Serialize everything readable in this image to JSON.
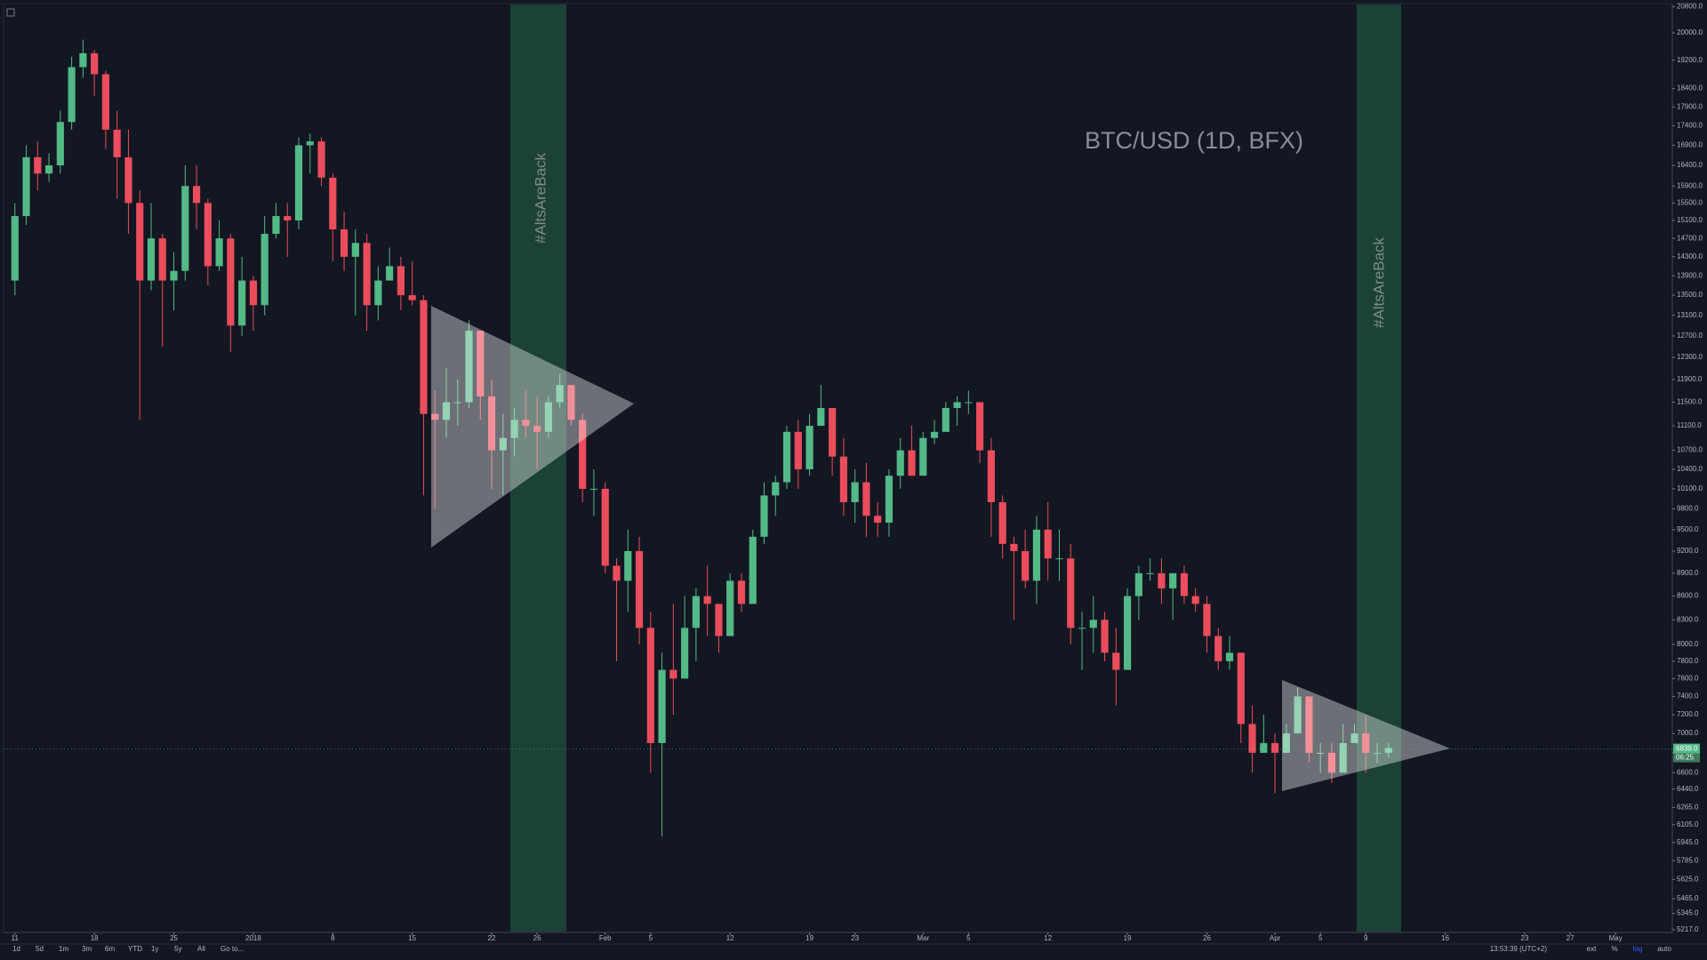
{
  "chart_data": {
    "type": "candlestick",
    "annotations": [
      "BTC/USD (1D, BFX)",
      "#AltsAreBack",
      "#AltsAreBack"
    ],
    "up_color": "#53b987",
    "down_color": "#eb4d5c",
    "log_scale": true,
    "grid": false,
    "x": [
      "2017-12-11",
      "2017-12-12",
      "2017-12-13",
      "2017-12-14",
      "2017-12-15",
      "2017-12-16",
      "2017-12-17",
      "2017-12-18",
      "2017-12-19",
      "2017-12-20",
      "2017-12-21",
      "2017-12-22",
      "2017-12-23",
      "2017-12-24",
      "2017-12-25",
      "2017-12-26",
      "2017-12-27",
      "2017-12-28",
      "2017-12-29",
      "2017-12-30",
      "2017-12-31",
      "2018-01-01",
      "2018-01-02",
      "2018-01-03",
      "2018-01-04",
      "2018-01-05",
      "2018-01-06",
      "2018-01-07",
      "2018-01-08",
      "2018-01-09",
      "2018-01-10",
      "2018-01-11",
      "2018-01-12",
      "2018-01-13",
      "2018-01-14",
      "2018-01-15",
      "2018-01-16",
      "2018-01-17",
      "2018-01-18",
      "2018-01-19",
      "2018-01-20",
      "2018-01-21",
      "2018-01-22",
      "2018-01-23",
      "2018-01-24",
      "2018-01-25",
      "2018-01-26",
      "2018-01-27",
      "2018-01-28",
      "2018-01-29",
      "2018-01-30",
      "2018-01-31",
      "2018-02-01",
      "2018-02-02",
      "2018-02-03",
      "2018-02-04",
      "2018-02-05",
      "2018-02-06",
      "2018-02-07",
      "2018-02-08",
      "2018-02-09",
      "2018-02-10",
      "2018-02-11",
      "2018-02-12",
      "2018-02-13",
      "2018-02-14",
      "2018-02-15",
      "2018-02-16",
      "2018-02-17",
      "2018-02-18",
      "2018-02-19",
      "2018-02-20",
      "2018-02-21",
      "2018-02-22",
      "2018-02-23",
      "2018-02-24",
      "2018-02-25",
      "2018-02-26",
      "2018-02-27",
      "2018-02-28",
      "2018-03-01",
      "2018-03-02",
      "2018-03-03",
      "2018-03-04",
      "2018-03-05",
      "2018-03-06",
      "2018-03-07",
      "2018-03-08",
      "2018-03-09",
      "2018-03-10",
      "2018-03-11",
      "2018-03-12",
      "2018-03-13",
      "2018-03-14",
      "2018-03-15",
      "2018-03-16",
      "2018-03-17",
      "2018-03-18",
      "2018-03-19",
      "2018-03-20",
      "2018-03-21",
      "2018-03-22",
      "2018-03-23",
      "2018-03-24",
      "2018-03-25",
      "2018-03-26",
      "2018-03-27",
      "2018-03-28",
      "2018-03-29",
      "2018-03-30",
      "2018-03-31",
      "2018-04-01",
      "2018-04-02",
      "2018-04-03",
      "2018-04-04",
      "2018-04-05",
      "2018-04-06",
      "2018-04-07",
      "2018-04-08",
      "2018-04-09",
      "2018-04-10",
      "2018-04-11"
    ],
    "open": [
      13800,
      15200,
      16600,
      16200,
      16400,
      17500,
      19000,
      19400,
      18800,
      17300,
      16600,
      15500,
      13800,
      14700,
      13800,
      14000,
      15900,
      15500,
      14100,
      14700,
      12900,
      13800,
      13300,
      14800,
      15200,
      15100,
      16900,
      17000,
      16100,
      14900,
      14300,
      14600,
      13300,
      13800,
      14100,
      13500,
      13400,
      11300,
      11200,
      11500,
      11500,
      12800,
      11600,
      10700,
      10900,
      11200,
      11100,
      11000,
      11500,
      11800,
      11200,
      10100,
      10100,
      9000,
      8800,
      9200,
      8200,
      6900,
      7700,
      7600,
      8200,
      8600,
      8500,
      8100,
      8800,
      8500,
      9400,
      10000,
      10200,
      11000,
      10400,
      11100,
      11400,
      10600,
      9900,
      10200,
      9700,
      9600,
      10300,
      10700,
      10300,
      10900,
      11000,
      11400,
      11500,
      11500,
      10700,
      9900,
      9300,
      9200,
      8800,
      9500,
      9100,
      9100,
      8200,
      8200,
      8300,
      7900,
      7700,
      8600,
      8900,
      8900,
      8700,
      8900,
      8600,
      8500,
      8100,
      7800,
      7900,
      7100,
      6800,
      6900,
      6800,
      7000,
      7400,
      6800,
      6800,
      6600,
      6900,
      7000,
      6800,
      6800
    ],
    "high": [
      15500,
      16900,
      17000,
      16700,
      17800,
      19300,
      19800,
      19500,
      18900,
      17800,
      17300,
      15800,
      15500,
      14800,
      14400,
      16400,
      16400,
      15600,
      15100,
      14800,
      14300,
      13900,
      15200,
      15500,
      15500,
      17100,
      17200,
      17100,
      16200,
      15300,
      14900,
      14800,
      14100,
      14500,
      14300,
      14200,
      13500,
      11700,
      12100,
      11900,
      13000,
      12800,
      11900,
      11300,
      11400,
      11700,
      11600,
      11600,
      12000,
      11800,
      11300,
      10400,
      10200,
      9100,
      9500,
      9400,
      8400,
      7900,
      8500,
      8600,
      8700,
      9000,
      8500,
      8900,
      8900,
      9500,
      10200,
      10300,
      11100,
      11200,
      11300,
      11800,
      11400,
      10900,
      10400,
      10500,
      9900,
      10400,
      10900,
      11100,
      11000,
      11200,
      11500,
      11600,
      11700,
      11500,
      10900,
      10000,
      9400,
      9500,
      9700,
      9900,
      9500,
      9300,
      8400,
      8600,
      8400,
      8200,
      8700,
      9000,
      9100,
      9100,
      8900,
      9000,
      8700,
      8600,
      8200,
      8100,
      7900,
      7300,
      7200,
      7000,
      7100,
      7500,
      7400,
      6900,
      6900,
      7100,
      7100,
      7200,
      6900,
      6900
    ],
    "low": [
      13500,
      15000,
      15800,
      16000,
      16200,
      17300,
      18700,
      18200,
      16800,
      15600,
      14800,
      11200,
      13600,
      12500,
      13200,
      13800,
      14900,
      13700,
      14000,
      12400,
      12700,
      12800,
      13100,
      14700,
      14300,
      14900,
      16200,
      15900,
      14200,
      14000,
      13100,
      12800,
      13000,
      13800,
      13200,
      13300,
      10000,
      9800,
      10900,
      11100,
      11400,
      11200,
      10100,
      10000,
      10600,
      10900,
      10400,
      10900,
      11400,
      11100,
      9900,
      9700,
      8900,
      7800,
      8400,
      8000,
      6600,
      6000,
      7200,
      7600,
      7800,
      8100,
      7900,
      8100,
      8400,
      8500,
      9300,
      9700,
      10100,
      10100,
      10300,
      11100,
      10300,
      9700,
      9600,
      9400,
      9400,
      9400,
      10100,
      10300,
      10300,
      10800,
      11000,
      11100,
      11300,
      10500,
      9400,
      9100,
      8300,
      8700,
      8500,
      8800,
      8800,
      8000,
      7700,
      7900,
      7800,
      7300,
      7700,
      8300,
      8800,
      8500,
      8300,
      8500,
      8400,
      7900,
      7700,
      7700,
      6900,
      6600,
      6800,
      6400,
      6800,
      7000,
      6700,
      6600,
      6500,
      6600,
      6900,
      6600,
      6700,
      6750
    ],
    "close": [
      15200,
      16600,
      16200,
      16400,
      17500,
      19000,
      19400,
      18800,
      17300,
      16600,
      15500,
      13800,
      14700,
      13800,
      14000,
      15900,
      15500,
      14100,
      14700,
      12900,
      13800,
      13300,
      14800,
      15200,
      15100,
      16900,
      17000,
      16100,
      14900,
      14300,
      14600,
      13300,
      13800,
      14100,
      13500,
      13400,
      11300,
      11200,
      11500,
      11500,
      12800,
      11600,
      10700,
      10900,
      11200,
      11100,
      11000,
      11500,
      11800,
      11200,
      10100,
      10100,
      9000,
      8800,
      9200,
      8200,
      6900,
      7700,
      7600,
      8200,
      8600,
      8500,
      8100,
      8800,
      8500,
      9400,
      10000,
      10200,
      11000,
      10400,
      11100,
      11400,
      10600,
      9900,
      10200,
      9700,
      9600,
      10300,
      10700,
      10300,
      10900,
      11000,
      11400,
      11500,
      11500,
      10700,
      9900,
      9300,
      9200,
      8800,
      9500,
      9100,
      9100,
      8200,
      8200,
      8300,
      7900,
      7700,
      8600,
      8900,
      8900,
      8700,
      8900,
      8600,
      8500,
      8100,
      7800,
      7900,
      7100,
      6800,
      6900,
      6800,
      7000,
      7400,
      6800,
      6800,
      6600,
      6900,
      7000,
      6800,
      6800,
      6850
    ],
    "xlim": [
      "2017-12-10",
      "2018-05-06"
    ],
    "xticks": [
      {
        "value": "2017-12-11",
        "label": "11"
      },
      {
        "value": "2017-12-18",
        "label": "18"
      },
      {
        "value": "2017-12-25",
        "label": "25"
      },
      {
        "value": "2018-01-01",
        "label": "2018"
      },
      {
        "value": "2018-01-08",
        "label": "8"
      },
      {
        "value": "2018-01-15",
        "label": "15"
      },
      {
        "value": "2018-01-22",
        "label": "22"
      },
      {
        "value": "2018-01-26",
        "label": "26"
      },
      {
        "value": "2018-02-01",
        "label": "Feb"
      },
      {
        "value": "2018-02-05",
        "label": "5"
      },
      {
        "value": "2018-02-12",
        "label": "12"
      },
      {
        "value": "2018-02-19",
        "label": "19"
      },
      {
        "value": "2018-02-23",
        "label": "23"
      },
      {
        "value": "2018-03-01",
        "label": "Mar"
      },
      {
        "value": "2018-03-05",
        "label": "5"
      },
      {
        "value": "2018-03-12",
        "label": "12"
      },
      {
        "value": "2018-03-19",
        "label": "19"
      },
      {
        "value": "2018-03-26",
        "label": "26"
      },
      {
        "value": "2018-04-01",
        "label": "Apr"
      },
      {
        "value": "2018-04-05",
        "label": "5"
      },
      {
        "value": "2018-04-09",
        "label": "9"
      },
      {
        "value": "2018-04-16",
        "label": "16"
      },
      {
        "value": "2018-04-23",
        "label": "23"
      },
      {
        "value": "2018-04-27",
        "label": "27"
      },
      {
        "value": "2018-05-01",
        "label": "May"
      }
    ],
    "ylim": [
      5195,
      20900
    ],
    "yticks": [
      {
        "value": 20800,
        "label": "20800.0"
      },
      {
        "value": 20000,
        "label": "20000.0"
      },
      {
        "value": 19200,
        "label": "19200.0"
      },
      {
        "value": 18400,
        "label": "18400.0"
      },
      {
        "value": 17900,
        "label": "17900.0"
      },
      {
        "value": 17400,
        "label": "17400.0"
      },
      {
        "value": 16900,
        "label": "16900.0"
      },
      {
        "value": 16400,
        "label": "16400.0"
      },
      {
        "value": 15900,
        "label": "15900.0"
      },
      {
        "value": 15500,
        "label": "15500.0"
      },
      {
        "value": 15100,
        "label": "15100.0"
      },
      {
        "value": 14700,
        "label": "14700.0"
      },
      {
        "value": 14300,
        "label": "14300.0"
      },
      {
        "value": 13900,
        "label": "13900.0"
      },
      {
        "value": 13500,
        "label": "13500.0"
      },
      {
        "value": 13100,
        "label": "13100.0"
      },
      {
        "value": 12700,
        "label": "12700.0"
      },
      {
        "value": 12300,
        "label": "12300.0"
      },
      {
        "value": 11900,
        "label": "11900.0"
      },
      {
        "value": 11500,
        "label": "11500.0"
      },
      {
        "value": 11100,
        "label": "11100.0"
      },
      {
        "value": 10700,
        "label": "10700.0"
      },
      {
        "value": 10400,
        "label": "10400.0"
      },
      {
        "value": 10100,
        "label": "10100.0"
      },
      {
        "value": 9800,
        "label": "9800.0"
      },
      {
        "value": 9500,
        "label": "9500.0"
      },
      {
        "value": 9200,
        "label": "9200.0"
      },
      {
        "value": 8900,
        "label": "8900.0"
      },
      {
        "value": 8600,
        "label": "8600.0"
      },
      {
        "value": 8300,
        "label": "8300.0"
      },
      {
        "value": 8000,
        "label": "8000.0"
      },
      {
        "value": 7800,
        "label": "7800.0"
      },
      {
        "value": 7600,
        "label": "7600.0"
      },
      {
        "value": 7400,
        "label": "7400.0"
      },
      {
        "value": 7200,
        "label": "7200.0"
      },
      {
        "value": 7000,
        "label": "7000.0"
      },
      {
        "value": 6800,
        "label": "6800.0"
      },
      {
        "value": 6600,
        "label": "6600.0"
      },
      {
        "value": 6440,
        "label": "6440.0"
      },
      {
        "value": 6265,
        "label": "6265.0"
      },
      {
        "value": 6105,
        "label": "6105.0"
      },
      {
        "value": 5945,
        "label": "5945.0"
      },
      {
        "value": 5785,
        "label": "5785.0"
      },
      {
        "value": 5625,
        "label": "5625.0"
      },
      {
        "value": 5465,
        "label": "5465.0"
      },
      {
        "value": 5345,
        "label": "5345.0"
      },
      {
        "value": 5217,
        "label": "5217.0"
      }
    ],
    "last_price": {
      "value": 6839,
      "label": "6839.0"
    },
    "countdown": "06:25"
  },
  "toolbar": {
    "ranges": [
      "1d",
      "5d",
      "1m",
      "3m",
      "6m",
      "YTD",
      "1y",
      "5y",
      "All",
      "Go to..."
    ],
    "clock": "13:53:39 (UTC+2)",
    "options": [
      "ext",
      "%",
      "log",
      "auto"
    ]
  }
}
